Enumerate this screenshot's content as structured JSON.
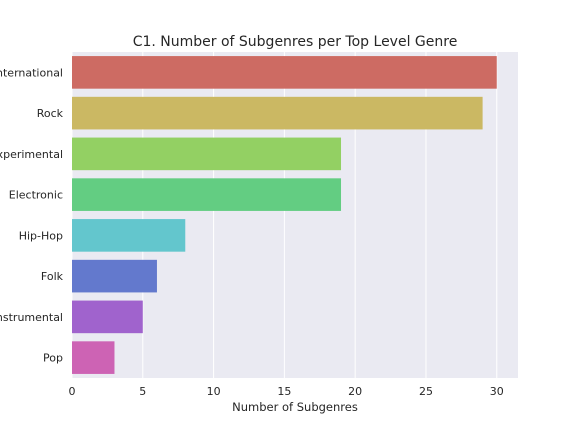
{
  "chart_data": {
    "type": "bar",
    "orientation": "horizontal",
    "title": "C1. Number of Subgenres per Top Level Genre",
    "xlabel": "Number of Subgenres",
    "ylabel": "",
    "categories": [
      "International",
      "Rock",
      "Experimental",
      "Electronic",
      "Hip-Hop",
      "Folk",
      "Instrumental",
      "Pop"
    ],
    "values": [
      30,
      29,
      19,
      19,
      8,
      6,
      5,
      3
    ],
    "colors": [
      "#cd6b63",
      "#cbb863",
      "#93d063",
      "#63cd82",
      "#63c6cd",
      "#6379cd",
      "#a063cd",
      "#cd63b4"
    ],
    "xlim": [
      0,
      31.5
    ],
    "xticks": [
      0,
      5,
      10,
      15,
      20,
      25,
      30
    ],
    "grid": true,
    "background": "#eaeaf2",
    "legend": "none"
  }
}
